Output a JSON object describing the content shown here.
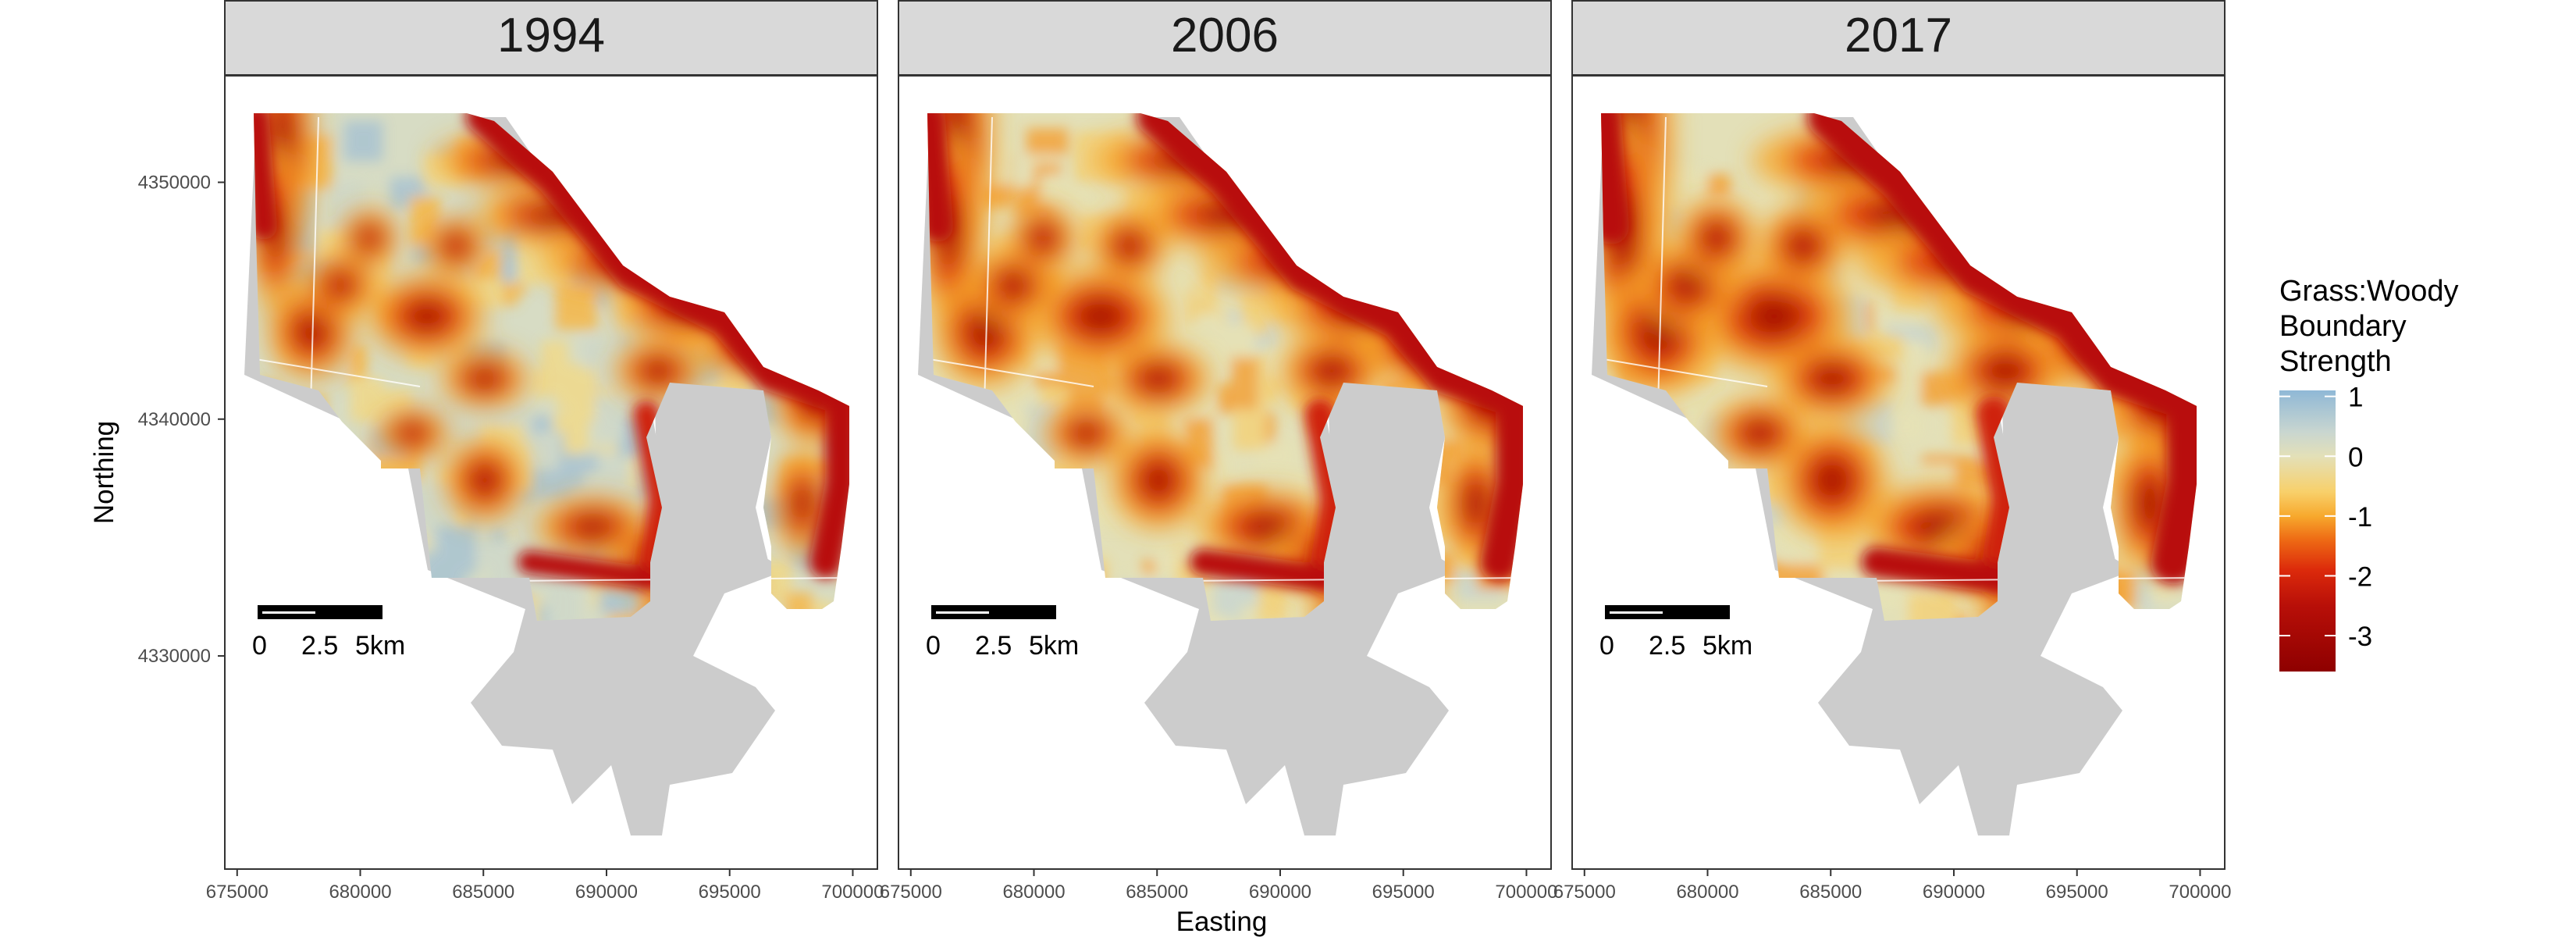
{
  "facets": [
    {
      "label": "1994",
      "year": 1994
    },
    {
      "label": "2006",
      "year": 2006
    },
    {
      "label": "2017",
      "year": 2017
    }
  ],
  "axes": {
    "x_label": "Easting",
    "y_label": "Northing",
    "x_range": [
      674500,
      701000
    ],
    "y_range": [
      4321000,
      4354500
    ],
    "x_ticks": [
      {
        "value": 675000,
        "label": "675000"
      },
      {
        "value": 680000,
        "label": "680000"
      },
      {
        "value": 685000,
        "label": "685000"
      },
      {
        "value": 690000,
        "label": "690000"
      },
      {
        "value": 695000,
        "label": "695000"
      },
      {
        "value": 700000,
        "label": "700000"
      }
    ],
    "y_ticks": [
      {
        "value": 4330000,
        "label": "4330000"
      },
      {
        "value": 4340000,
        "label": "4340000"
      },
      {
        "value": 4350000,
        "label": "4350000"
      }
    ]
  },
  "scale_bar": {
    "labels": [
      "0",
      "2.5",
      "5km"
    ],
    "length_km": 5,
    "position": "bottom-left"
  },
  "legend": {
    "title_lines": [
      "Grass:Woody",
      "Boundary",
      "Strength"
    ],
    "range": [
      -3.6,
      1.1
    ],
    "ticks": [
      {
        "value": 1,
        "label": "1"
      },
      {
        "value": 0,
        "label": "0"
      },
      {
        "value": -1,
        "label": "-1"
      },
      {
        "value": -2,
        "label": "-2"
      },
      {
        "value": -3,
        "label": "-3"
      }
    ],
    "stops": [
      {
        "value": 1.1,
        "color": "#8fb8d6"
      },
      {
        "value": 0.4,
        "color": "#c9d6d0"
      },
      {
        "value": 0.0,
        "color": "#e3e0b8"
      },
      {
        "value": -0.6,
        "color": "#f8d06a"
      },
      {
        "value": -1.0,
        "color": "#f7a92d"
      },
      {
        "value": -1.4,
        "color": "#ee6a14"
      },
      {
        "value": -1.9,
        "color": "#dc2a0b"
      },
      {
        "value": -2.5,
        "color": "#b80f08"
      },
      {
        "value": -3.6,
        "color": "#8e0000"
      }
    ]
  },
  "colors": {
    "strip_bg": "#d9d9d9",
    "panel_border": "#333333",
    "no_data_gray": "#cccccc",
    "background": "#ffffff"
  }
}
